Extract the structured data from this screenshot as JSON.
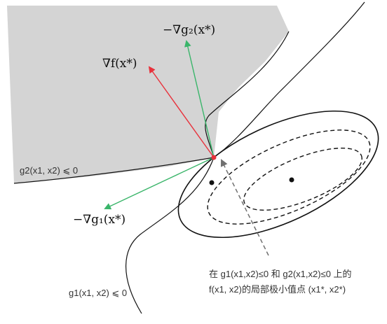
{
  "labels": {
    "neg_grad_g2": "−∇g₂(x*)",
    "grad_f": "∇f(x*)",
    "neg_grad_g1": "−∇g₁(x*)",
    "g2_region": "g2(x1, x2) ⩽ 0",
    "g1_region": "g1(x1, x2) ⩽ 0",
    "annotation_line1": "在 g1(x1,x2)≤0 和 g2(x1,x2)≤0 上的",
    "annotation_line2": "f(x1, x2)的局部极小值点  (x1*, x2*)"
  },
  "colors": {
    "grad_f_arrow": "#e8323c",
    "grad_g_arrows": "#3ab56a",
    "feasible_region_fill": "#d4d4d4",
    "curves": "#111111",
    "pointer_arrow": "#707070",
    "optimum_point": "#e8323c"
  }
}
